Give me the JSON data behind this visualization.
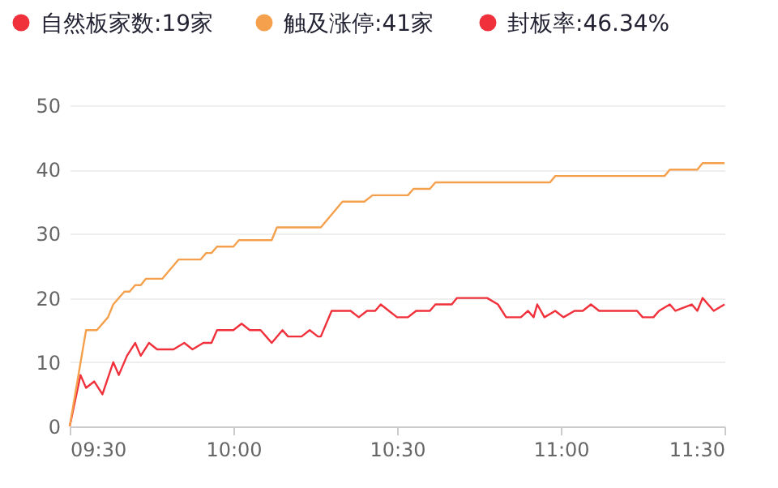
{
  "chart_data": {
    "type": "line",
    "annotations": [
      "封板率:46.34%"
    ],
    "xlim": [
      9.5,
      11.5
    ],
    "xticks": [
      {
        "value": 9.5,
        "label": "09:30"
      },
      {
        "value": 10.0,
        "label": "10:00"
      },
      {
        "value": 10.5,
        "label": "10:30"
      },
      {
        "value": 11.0,
        "label": "11:00"
      },
      {
        "value": 11.5,
        "label": "11:30"
      }
    ],
    "ylim": [
      0,
      50
    ],
    "yticks": [
      0,
      10,
      20,
      30,
      40,
      50
    ],
    "grid": "y",
    "legend": "top left",
    "marker": "none",
    "line_style": "solid",
    "series": [
      {
        "name": "自然板家数:19家",
        "color": "#f0303a",
        "x": [
          9.5,
          9.533,
          9.55,
          9.575,
          9.6,
          9.633,
          9.65,
          9.675,
          9.7,
          9.717,
          9.742,
          9.767,
          9.817,
          9.85,
          9.875,
          9.908,
          9.933,
          9.95,
          10.0,
          10.025,
          10.05,
          10.083,
          10.1,
          10.117,
          10.15,
          10.167,
          10.208,
          10.233,
          10.258,
          10.267,
          10.3,
          10.358,
          10.383,
          10.408,
          10.433,
          10.45,
          10.475,
          10.5,
          10.533,
          10.558,
          10.6,
          10.617,
          10.667,
          10.683,
          10.775,
          10.808,
          10.833,
          10.878,
          10.9,
          10.917,
          10.928,
          10.95,
          10.983,
          11.008,
          11.042,
          11.067,
          11.092,
          11.117,
          11.233,
          11.25,
          11.283,
          11.3,
          11.333,
          11.35,
          11.4,
          11.417,
          11.433,
          11.467,
          11.5
        ],
        "values": [
          0,
          8,
          6,
          7,
          5,
          10,
          8,
          11,
          13,
          11,
          13,
          12,
          12,
          13,
          12,
          13,
          13,
          15,
          15,
          16,
          15,
          15,
          14,
          13,
          15,
          14,
          14,
          15,
          14,
          14,
          18,
          18,
          17,
          18,
          18,
          19,
          18,
          17,
          17,
          18,
          18,
          19,
          19,
          20,
          20,
          19,
          17,
          17,
          18,
          17,
          19,
          17,
          18,
          17,
          18,
          18,
          19,
          18,
          18,
          17,
          17,
          18,
          19,
          18,
          19,
          18,
          20,
          18,
          19
        ]
      },
      {
        "name": "触及涨停:41家",
        "color": "#f5a04d",
        "x": [
          9.5,
          9.55,
          9.583,
          9.617,
          9.633,
          9.667,
          9.683,
          9.7,
          9.717,
          9.733,
          9.783,
          9.833,
          9.9,
          9.917,
          9.933,
          9.95,
          10.0,
          10.017,
          10.117,
          10.133,
          10.267,
          10.333,
          10.4,
          10.425,
          10.533,
          10.55,
          10.6,
          10.617,
          10.967,
          10.983,
          11.317,
          11.333,
          11.417,
          11.433,
          11.5
        ],
        "values": [
          0,
          15,
          15,
          17,
          19,
          21,
          21,
          22,
          22,
          23,
          23,
          26,
          26,
          27,
          27,
          28,
          28,
          29,
          29,
          31,
          31,
          35,
          35,
          36,
          36,
          37,
          37,
          38,
          38,
          39,
          39,
          40,
          40,
          41,
          41
        ]
      }
    ]
  }
}
